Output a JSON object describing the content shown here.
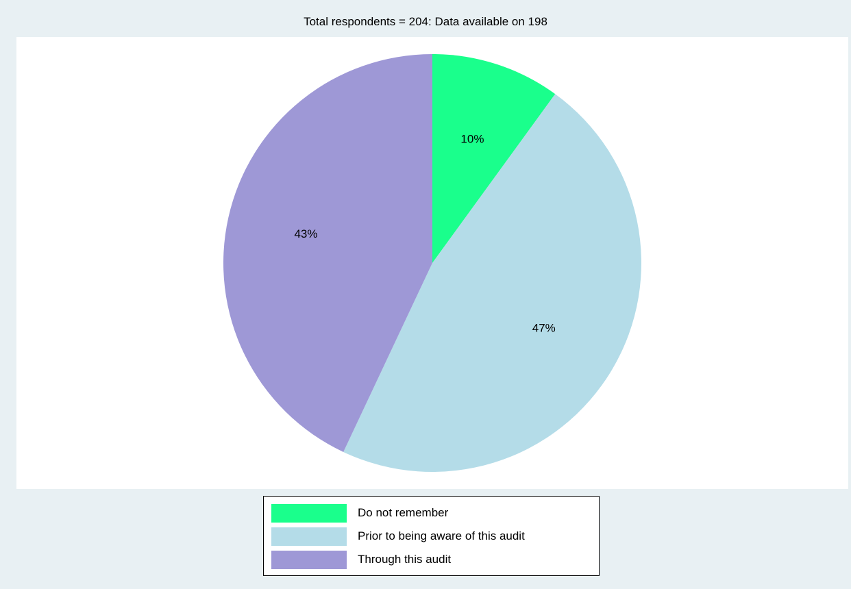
{
  "chart_data": {
    "type": "pie",
    "title": "Total respondents = 204: Data available on 198",
    "slices": [
      {
        "label": "Do not remember",
        "value": 10,
        "value_label": "10%",
        "color": "#1aff8c"
      },
      {
        "label": "Prior to being aware of this audit",
        "value": 47,
        "value_label": "47%",
        "color": "#b4dce8"
      },
      {
        "label": "Through this audit",
        "value": 43,
        "value_label": "43%",
        "color": "#9e98d6"
      }
    ],
    "start_angle": "12 o'clock",
    "direction": "clockwise",
    "legend_position": "bottom"
  }
}
